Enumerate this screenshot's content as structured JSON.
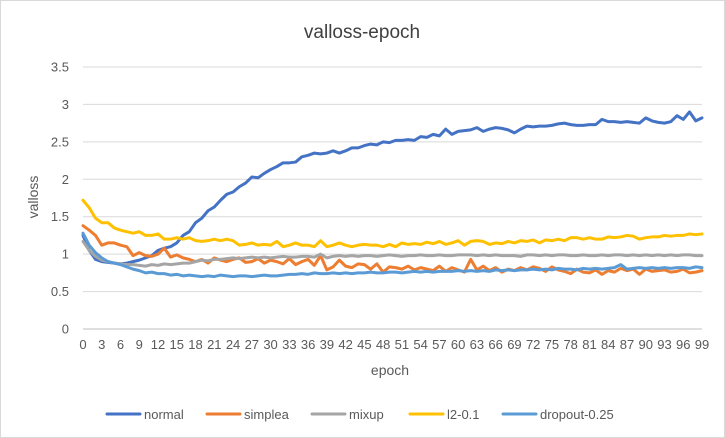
{
  "chart_data": {
    "type": "line",
    "title": "valloss-epoch",
    "xlabel": "epoch",
    "ylabel": "valloss",
    "xlim": [
      0,
      99
    ],
    "ylim": [
      0,
      3.5
    ],
    "yticks": [
      "0",
      "0.5",
      "1",
      "1.5",
      "2",
      "2.5",
      "3",
      "3.5"
    ],
    "xticks": [
      "0",
      "3",
      "6",
      "9",
      "12",
      "15",
      "18",
      "21",
      "24",
      "27",
      "30",
      "33",
      "36",
      "39",
      "42",
      "45",
      "48",
      "51",
      "54",
      "57",
      "60",
      "63",
      "66",
      "69",
      "72",
      "75",
      "78",
      "81",
      "84",
      "87",
      "90",
      "93",
      "96",
      "99"
    ],
    "grid": true,
    "legend_position": "bottom",
    "colors": {
      "normal": "#4472c4",
      "simplea": "#ed7d31",
      "mixup": "#a5a5a5",
      "l2-0.1": "#ffc000",
      "dropout-0.25": "#5b9bd5"
    },
    "series": [
      {
        "name": "normal",
        "values": [
          1.25,
          1.05,
          0.93,
          0.9,
          0.89,
          0.88,
          0.87,
          0.88,
          0.9,
          0.92,
          0.95,
          0.98,
          1.05,
          1.08,
          1.1,
          1.15,
          1.25,
          1.3,
          1.42,
          1.48,
          1.58,
          1.63,
          1.72,
          1.8,
          1.83,
          1.9,
          1.95,
          2.03,
          2.02,
          2.08,
          2.13,
          2.17,
          2.22,
          2.22,
          2.23,
          2.3,
          2.32,
          2.35,
          2.34,
          2.35,
          2.38,
          2.35,
          2.38,
          2.42,
          2.42,
          2.45,
          2.47,
          2.46,
          2.5,
          2.49,
          2.52,
          2.52,
          2.53,
          2.52,
          2.57,
          2.56,
          2.6,
          2.58,
          2.67,
          2.6,
          2.64,
          2.65,
          2.66,
          2.69,
          2.64,
          2.67,
          2.69,
          2.68,
          2.66,
          2.62,
          2.67,
          2.71,
          2.7,
          2.71,
          2.71,
          2.72,
          2.74,
          2.75,
          2.73,
          2.72,
          2.72,
          2.73,
          2.73,
          2.8,
          2.77,
          2.77,
          2.76,
          2.77,
          2.76,
          2.75,
          2.82,
          2.78,
          2.76,
          2.75,
          2.77,
          2.85,
          2.8,
          2.9,
          2.78,
          2.82
        ]
      },
      {
        "name": "simplea",
        "values": [
          1.38,
          1.32,
          1.25,
          1.12,
          1.15,
          1.15,
          1.12,
          1.1,
          0.98,
          1.02,
          0.98,
          0.97,
          1.0,
          1.08,
          0.96,
          0.99,
          0.95,
          0.93,
          0.9,
          0.93,
          0.88,
          0.95,
          0.92,
          0.9,
          0.93,
          0.95,
          0.89,
          0.9,
          0.94,
          0.88,
          0.92,
          0.9,
          0.87,
          0.94,
          0.86,
          0.9,
          0.93,
          0.85,
          0.98,
          0.79,
          0.83,
          0.92,
          0.84,
          0.82,
          0.87,
          0.86,
          0.8,
          0.87,
          0.76,
          0.83,
          0.82,
          0.8,
          0.84,
          0.79,
          0.82,
          0.8,
          0.78,
          0.84,
          0.77,
          0.82,
          0.79,
          0.76,
          0.93,
          0.79,
          0.84,
          0.78,
          0.82,
          0.76,
          0.8,
          0.78,
          0.82,
          0.79,
          0.83,
          0.81,
          0.77,
          0.83,
          0.79,
          0.77,
          0.74,
          0.8,
          0.76,
          0.75,
          0.79,
          0.73,
          0.78,
          0.76,
          0.81,
          0.78,
          0.8,
          0.73,
          0.8,
          0.77,
          0.78,
          0.79,
          0.76,
          0.77,
          0.8,
          0.75,
          0.76,
          0.78
        ]
      },
      {
        "name": "mixup",
        "values": [
          1.17,
          1.05,
          0.97,
          0.92,
          0.9,
          0.88,
          0.87,
          0.86,
          0.86,
          0.85,
          0.84,
          0.86,
          0.85,
          0.87,
          0.86,
          0.87,
          0.88,
          0.88,
          0.9,
          0.92,
          0.91,
          0.93,
          0.93,
          0.94,
          0.95,
          0.94,
          0.95,
          0.96,
          0.95,
          0.96,
          0.95,
          0.96,
          0.97,
          0.96,
          0.96,
          0.97,
          0.97,
          0.96,
          1.0,
          0.95,
          0.97,
          0.98,
          0.97,
          0.98,
          0.97,
          0.98,
          0.98,
          0.97,
          0.98,
          0.99,
          0.98,
          0.97,
          0.98,
          0.98,
          0.99,
          0.98,
          0.98,
          0.99,
          0.98,
          0.98,
          0.99,
          0.99,
          0.99,
          0.98,
          0.99,
          0.98,
          0.99,
          0.98,
          0.98,
          0.98,
          0.97,
          0.99,
          0.99,
          0.98,
          0.99,
          0.98,
          0.99,
          0.99,
          0.98,
          0.98,
          0.99,
          0.98,
          0.98,
          0.99,
          0.98,
          0.99,
          0.99,
          0.98,
          0.99,
          0.98,
          0.99,
          0.98,
          0.99,
          0.98,
          0.99,
          0.98,
          0.99,
          0.99,
          0.98,
          0.98
        ]
      },
      {
        "name": "l2-0.1",
        "values": [
          1.72,
          1.62,
          1.48,
          1.42,
          1.42,
          1.35,
          1.32,
          1.3,
          1.28,
          1.3,
          1.25,
          1.25,
          1.27,
          1.2,
          1.2,
          1.22,
          1.2,
          1.22,
          1.18,
          1.17,
          1.18,
          1.2,
          1.18,
          1.2,
          1.18,
          1.12,
          1.13,
          1.15,
          1.12,
          1.13,
          1.12,
          1.17,
          1.1,
          1.12,
          1.15,
          1.12,
          1.12,
          1.1,
          1.18,
          1.1,
          1.12,
          1.15,
          1.12,
          1.1,
          1.12,
          1.13,
          1.12,
          1.12,
          1.1,
          1.13,
          1.1,
          1.15,
          1.13,
          1.14,
          1.13,
          1.16,
          1.14,
          1.17,
          1.13,
          1.15,
          1.18,
          1.12,
          1.17,
          1.18,
          1.17,
          1.13,
          1.15,
          1.14,
          1.17,
          1.15,
          1.18,
          1.17,
          1.19,
          1.15,
          1.19,
          1.18,
          1.2,
          1.18,
          1.22,
          1.22,
          1.2,
          1.22,
          1.2,
          1.2,
          1.23,
          1.22,
          1.23,
          1.25,
          1.24,
          1.2,
          1.22,
          1.23,
          1.23,
          1.25,
          1.24,
          1.25,
          1.25,
          1.27,
          1.26,
          1.27
        ]
      },
      {
        "name": "dropout-0.25",
        "values": [
          1.28,
          1.12,
          1.02,
          0.95,
          0.9,
          0.88,
          0.86,
          0.83,
          0.8,
          0.78,
          0.75,
          0.76,
          0.74,
          0.74,
          0.72,
          0.73,
          0.71,
          0.72,
          0.71,
          0.7,
          0.71,
          0.7,
          0.72,
          0.71,
          0.7,
          0.71,
          0.71,
          0.7,
          0.71,
          0.72,
          0.71,
          0.71,
          0.72,
          0.73,
          0.73,
          0.74,
          0.73,
          0.75,
          0.74,
          0.74,
          0.75,
          0.74,
          0.75,
          0.74,
          0.75,
          0.75,
          0.76,
          0.75,
          0.75,
          0.76,
          0.76,
          0.75,
          0.76,
          0.77,
          0.76,
          0.77,
          0.76,
          0.77,
          0.77,
          0.77,
          0.78,
          0.77,
          0.78,
          0.77,
          0.78,
          0.77,
          0.79,
          0.78,
          0.79,
          0.78,
          0.79,
          0.79,
          0.8,
          0.79,
          0.8,
          0.79,
          0.81,
          0.8,
          0.8,
          0.79,
          0.81,
          0.8,
          0.81,
          0.8,
          0.81,
          0.82,
          0.86,
          0.8,
          0.81,
          0.82,
          0.81,
          0.82,
          0.81,
          0.82,
          0.81,
          0.82,
          0.82,
          0.81,
          0.83,
          0.82
        ]
      }
    ]
  }
}
